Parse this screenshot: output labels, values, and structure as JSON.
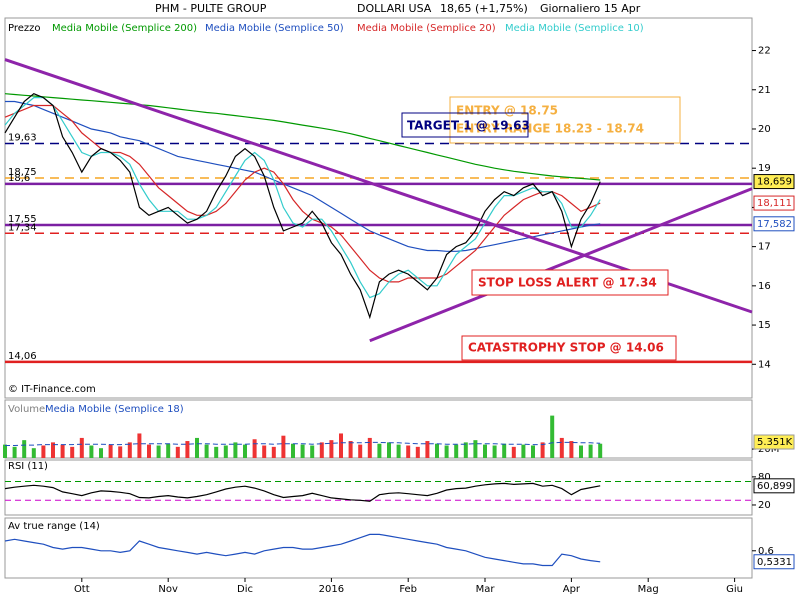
{
  "chart_data": [
    {
      "type": "line",
      "title": "PHM - PULTE GROUP",
      "currency": "DOLLARI USA",
      "quote": "18,65 (+1,75%)",
      "period": "Giornaliero 15 Apr",
      "credit": "© IT-Finance.com",
      "ylim": [
        13.14,
        22.83
      ],
      "yticks": [
        14,
        15,
        16,
        17,
        18,
        19,
        20,
        21,
        22
      ],
      "series": [
        {
          "name": "Prezzo",
          "color": "#000000",
          "last_label": "18,659",
          "values": [
            19.9,
            20.3,
            20.7,
            20.9,
            20.8,
            20.6,
            19.8,
            19.4,
            18.9,
            19.3,
            19.5,
            19.4,
            19.2,
            18.9,
            18.0,
            17.8,
            17.9,
            18.0,
            17.8,
            17.6,
            17.7,
            17.9,
            18.4,
            18.8,
            19.3,
            19.5,
            19.3,
            18.8,
            18.0,
            17.4,
            17.5,
            17.6,
            17.9,
            17.6,
            17.1,
            16.8,
            16.3,
            15.9,
            15.2,
            16.1,
            16.3,
            16.4,
            16.3,
            16.1,
            15.9,
            16.2,
            16.8,
            17.0,
            17.1,
            17.4,
            17.9,
            18.2,
            18.4,
            18.3,
            18.5,
            18.6,
            18.3,
            18.4,
            17.9,
            17.0,
            17.7,
            18.1,
            18.659,
            null,
            null,
            null,
            null,
            null,
            null,
            null,
            null,
            null,
            null,
            null,
            null,
            null,
            null,
            null
          ]
        },
        {
          "name": "Media Mobile (Semplice 200)",
          "color": "#009900",
          "values": [
            20.9,
            20.88,
            20.86,
            20.84,
            20.82,
            20.8,
            20.78,
            20.76,
            20.74,
            20.72,
            20.7,
            20.68,
            20.66,
            20.64,
            20.62,
            20.6,
            20.57,
            20.54,
            20.51,
            20.48,
            20.45,
            20.42,
            20.4,
            20.37,
            20.34,
            20.31,
            20.28,
            20.25,
            20.22,
            20.18,
            20.14,
            20.1,
            20.06,
            20.02,
            19.98,
            19.93,
            19.88,
            19.82,
            19.76,
            19.7,
            19.64,
            19.58,
            19.52,
            19.46,
            19.4,
            19.34,
            19.28,
            19.22,
            19.16,
            19.1,
            19.05,
            19.0,
            18.96,
            18.92,
            18.89,
            18.86,
            18.83,
            18.8,
            18.78,
            18.76,
            18.74,
            18.72,
            18.7,
            null,
            null,
            null,
            null,
            null,
            null,
            null,
            null,
            null,
            null,
            null,
            null,
            null,
            null,
            null
          ]
        },
        {
          "name": "Media Mobile (Semplice 50)",
          "color": "#1f4fbf",
          "last_label": "17,582",
          "values": [
            20.7,
            20.7,
            20.65,
            20.6,
            20.5,
            20.4,
            20.3,
            20.2,
            20.1,
            20.0,
            19.95,
            19.9,
            19.8,
            19.75,
            19.7,
            19.6,
            19.5,
            19.4,
            19.3,
            19.25,
            19.2,
            19.15,
            19.1,
            19.05,
            19.0,
            18.95,
            18.9,
            18.8,
            18.7,
            18.6,
            18.5,
            18.4,
            18.3,
            18.15,
            18.0,
            17.85,
            17.7,
            17.55,
            17.4,
            17.3,
            17.2,
            17.1,
            17.0,
            16.95,
            16.9,
            16.9,
            16.88,
            16.88,
            16.9,
            16.95,
            17.0,
            17.05,
            17.1,
            17.15,
            17.2,
            17.25,
            17.3,
            17.35,
            17.4,
            17.45,
            17.5,
            17.55,
            17.582,
            null,
            null,
            null,
            null,
            null,
            null,
            null,
            null,
            null,
            null,
            null,
            null,
            null,
            null,
            null
          ]
        },
        {
          "name": "Media Mobile (Semplice 20)",
          "color": "#d62728",
          "last_label": "18,111",
          "values": [
            20.3,
            20.4,
            20.5,
            20.6,
            20.6,
            20.6,
            20.4,
            20.2,
            19.9,
            19.7,
            19.5,
            19.4,
            19.4,
            19.3,
            19.1,
            18.8,
            18.5,
            18.3,
            18.1,
            17.9,
            17.8,
            17.8,
            17.9,
            18.1,
            18.4,
            18.7,
            18.9,
            19.0,
            18.9,
            18.6,
            18.2,
            17.9,
            17.7,
            17.6,
            17.5,
            17.3,
            17.0,
            16.7,
            16.4,
            16.2,
            16.1,
            16.1,
            16.2,
            16.2,
            16.2,
            16.2,
            16.3,
            16.5,
            16.7,
            16.9,
            17.2,
            17.5,
            17.8,
            18.0,
            18.2,
            18.3,
            18.4,
            18.4,
            18.3,
            18.1,
            17.9,
            18.0,
            18.111,
            null,
            null,
            null,
            null,
            null,
            null,
            null,
            null,
            null,
            null,
            null,
            null,
            null,
            null,
            null
          ]
        },
        {
          "name": "Media Mobile (Semplice 10)",
          "color": "#33cccc",
          "values": [
            20.1,
            20.4,
            20.6,
            20.8,
            20.8,
            20.6,
            20.2,
            19.8,
            19.4,
            19.3,
            19.4,
            19.4,
            19.3,
            19.1,
            18.6,
            18.2,
            17.9,
            17.9,
            17.9,
            17.7,
            17.7,
            17.8,
            18.0,
            18.4,
            18.8,
            19.2,
            19.4,
            19.2,
            18.7,
            18.0,
            17.6,
            17.5,
            17.7,
            17.7,
            17.4,
            17.0,
            16.6,
            16.1,
            15.7,
            15.8,
            16.1,
            16.3,
            16.4,
            16.2,
            16.0,
            16.0,
            16.4,
            16.8,
            17.0,
            17.2,
            17.6,
            18.0,
            18.3,
            18.3,
            18.4,
            18.5,
            18.4,
            18.4,
            18.1,
            17.5,
            17.5,
            17.8,
            18.2,
            null,
            null,
            null,
            null,
            null,
            null,
            null,
            null,
            null,
            null,
            null,
            null,
            null,
            null,
            null
          ]
        }
      ],
      "levels": [
        {
          "value": 19.63,
          "label": "19,63",
          "color": "#000080",
          "dashed": true
        },
        {
          "value": 18.75,
          "label": "18,75",
          "color": "#f5a623",
          "dashed": true
        },
        {
          "value": 18.6,
          "label": "18,6",
          "color": "#7b1fa2",
          "dashed": false
        },
        {
          "value": 17.55,
          "label": "17,55",
          "color": "#7b1fa2",
          "dashed": false
        },
        {
          "value": 17.34,
          "label": "17,34",
          "color": "#e02020",
          "dashed": true
        },
        {
          "value": 14.06,
          "label": "14,06",
          "color": "#e02020",
          "dashed": false
        }
      ],
      "trendlines": [
        {
          "color": "#8e24aa",
          "from": 0,
          "to": 77,
          "values": [
            21.77,
            15.4
          ]
        },
        {
          "color": "#8e24aa",
          "from": 38,
          "to": 77,
          "values": [
            14.6,
            18.4
          ]
        }
      ],
      "annotations": [
        {
          "text": "ENTRY @ 18.75",
          "color": "#f5b041"
        },
        {
          "text": "ENTRY RANGE 18.23 - 18.74",
          "color": "#f5b041"
        },
        {
          "text": "TARGET 1 @ 19.63",
          "color": "#000080"
        },
        {
          "text": "STOP LOSS ALERT @ 17.34",
          "color": "#e02020"
        },
        {
          "text": "CATASTROPHY STOP @ 14.06",
          "color": "#e02020"
        }
      ]
    },
    {
      "type": "bar",
      "last_tag": "5.351K",
      "ylim": [
        0,
        130
      ],
      "yticks": [
        {
          "value": 20,
          "label": "20M"
        }
      ],
      "series": [
        {
          "name": "Volume",
          "color": "#808080",
          "up_color": "#33bb33",
          "down_color": "#ee3333",
          "values": [
            30,
            25,
            40,
            22,
            28,
            35,
            30,
            25,
            45,
            28,
            22,
            30,
            26,
            35,
            55,
            30,
            28,
            32,
            25,
            38,
            45,
            30,
            25,
            28,
            35,
            30,
            42,
            28,
            25,
            50,
            32,
            30,
            28,
            35,
            40,
            55,
            38,
            30,
            45,
            32,
            35,
            30,
            28,
            25,
            38,
            32,
            28,
            30,
            35,
            40,
            30,
            28,
            32,
            25,
            30,
            28,
            35,
            95,
            45,
            38,
            28,
            30,
            32,
            null,
            null,
            null,
            null,
            null,
            null,
            null,
            null,
            null,
            null,
            null,
            null,
            null,
            null,
            null
          ]
        },
        {
          "name": "Media Mobile (Semplice 18)",
          "color": "#1f4fbf",
          "values": [
            28,
            28,
            29,
            29,
            30,
            30,
            30,
            30,
            31,
            31,
            31,
            30,
            30,
            31,
            32,
            32,
            32,
            32,
            31,
            31,
            32,
            32,
            31,
            31,
            31,
            31,
            32,
            32,
            31,
            32,
            32,
            32,
            31,
            32,
            33,
            34,
            34,
            34,
            35,
            35,
            34,
            34,
            33,
            32,
            32,
            32,
            31,
            31,
            31,
            32,
            32,
            32,
            31,
            31,
            31,
            30,
            30,
            34,
            35,
            35,
            34,
            34,
            33,
            null,
            null,
            null,
            null,
            null,
            null,
            null,
            null,
            null,
            null,
            null,
            null,
            null,
            null,
            null
          ]
        }
      ]
    },
    {
      "type": "line",
      "title": "RSI (11)",
      "ylim": [
        -1.4,
        116
      ],
      "yticks": [
        80,
        20
      ],
      "levels": [
        {
          "value": 70,
          "color": "#009900"
        },
        {
          "value": 30,
          "color": "#cc00cc"
        }
      ],
      "series": [
        {
          "color": "#000000",
          "last_label": "60,899",
          "values": [
            55,
            58,
            60,
            62,
            60,
            57,
            48,
            44,
            40,
            46,
            50,
            49,
            47,
            44,
            36,
            35,
            38,
            40,
            37,
            35,
            38,
            42,
            48,
            54,
            58,
            60,
            56,
            50,
            42,
            36,
            38,
            40,
            45,
            40,
            35,
            33,
            31,
            30,
            28,
            42,
            45,
            46,
            44,
            42,
            40,
            45,
            52,
            55,
            56,
            60,
            63,
            65,
            66,
            64,
            65,
            66,
            60,
            62,
            55,
            42,
            53,
            57,
            60.899,
            null,
            null,
            null,
            null,
            null,
            null,
            null,
            null,
            null,
            null,
            null,
            null,
            null,
            null,
            null
          ]
        }
      ]
    },
    {
      "type": "line",
      "title": "Av true range (14)",
      "ylim": [
        0.434,
        0.8
      ],
      "yticks": [
        {
          "value": 0.6,
          "label": "0,6"
        }
      ],
      "categories": [
        null,
        null,
        null,
        null,
        null,
        null,
        null,
        null,
        "Ott",
        null,
        null,
        null,
        null,
        null,
        null,
        null,
        null,
        "Nov",
        null,
        null,
        null,
        null,
        null,
        null,
        null,
        "Dic",
        null,
        null,
        null,
        null,
        null,
        null,
        null,
        null,
        "2016",
        null,
        null,
        null,
        null,
        null,
        null,
        null,
        "Feb",
        null,
        null,
        null,
        null,
        null,
        null,
        null,
        "Mar",
        null,
        null,
        null,
        null,
        null,
        null,
        null,
        null,
        "Apr",
        null,
        null,
        null,
        null,
        null,
        null,
        null,
        "Mag",
        null,
        null,
        null,
        null,
        null,
        null,
        null,
        null,
        "Giu",
        null
      ],
      "series": [
        {
          "color": "#1f4fbf",
          "last_label": "0,5331",
          "values": [
            0.66,
            0.67,
            0.66,
            0.65,
            0.64,
            0.62,
            0.61,
            0.62,
            0.62,
            0.61,
            0.6,
            0.6,
            0.59,
            0.6,
            0.66,
            0.64,
            0.62,
            0.61,
            0.6,
            0.59,
            0.58,
            0.59,
            0.58,
            0.57,
            0.58,
            0.59,
            0.58,
            0.6,
            0.61,
            0.62,
            0.62,
            0.61,
            0.61,
            0.62,
            0.63,
            0.64,
            0.66,
            0.68,
            0.7,
            0.7,
            0.69,
            0.68,
            0.67,
            0.66,
            0.65,
            0.64,
            0.62,
            0.61,
            0.6,
            0.58,
            0.56,
            0.55,
            0.54,
            0.53,
            0.52,
            0.52,
            0.51,
            0.51,
            0.58,
            0.57,
            0.55,
            0.54,
            0.5331,
            null,
            null,
            null,
            null,
            null,
            null,
            null,
            null,
            null,
            null,
            null,
            null,
            null,
            null,
            null
          ]
        }
      ]
    }
  ]
}
